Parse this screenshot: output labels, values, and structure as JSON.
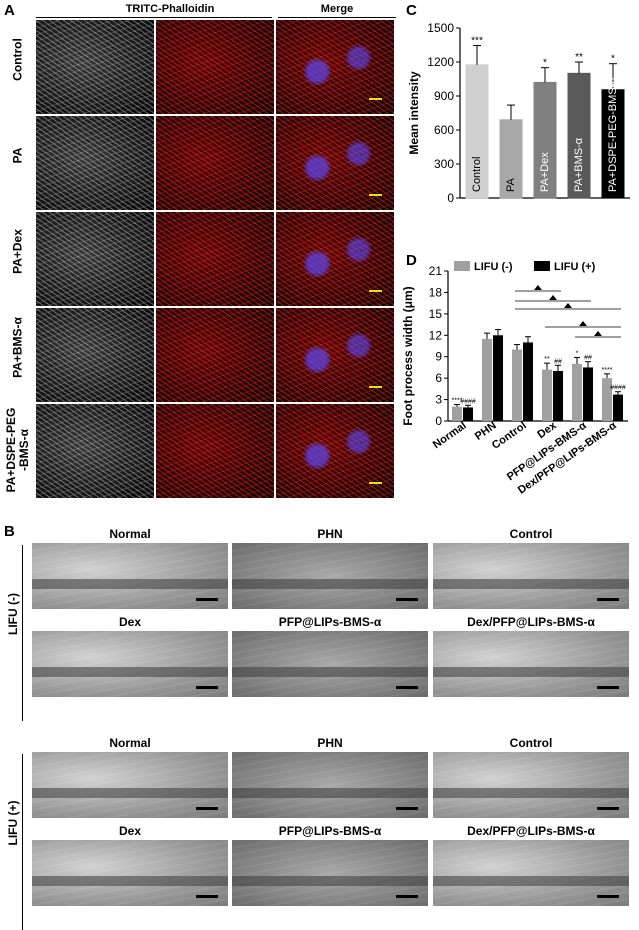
{
  "panel_a": {
    "letter": "A",
    "col_headers": [
      "TRITC-Phalloidin",
      "Merge"
    ],
    "rows": [
      "Control",
      "PA",
      "PA+Dex",
      "PA+BMS-α",
      "PA+DSPE-PEG\n-BMS-α"
    ]
  },
  "panel_c": {
    "letter": "C",
    "chart_data": {
      "type": "bar",
      "ylabel": "Mean intensity",
      "ylim": [
        0,
        1500
      ],
      "yticks": [
        0,
        300,
        600,
        900,
        1200,
        1500
      ],
      "categories": [
        "Control",
        "PA",
        "PA+Dex",
        "PA+BMS-α",
        "PA+DSPE-PEG-BMS-α"
      ],
      "values": [
        1175,
        690,
        1020,
        1100,
        955
      ],
      "errors": [
        170,
        130,
        130,
        100,
        230
      ],
      "significance": [
        "***",
        "",
        "*",
        "**",
        "*"
      ],
      "colors": [
        "#d0d0d0",
        "#a8a8a8",
        "#808080",
        "#5a5a5a",
        "#000000"
      ]
    }
  },
  "panel_d": {
    "letter": "D",
    "chart_data": {
      "type": "bar",
      "ylabel": "Foot process width (μm)",
      "ylim": [
        0,
        21
      ],
      "yticks": [
        0,
        3,
        6,
        9,
        12,
        15,
        18,
        21
      ],
      "categories": [
        "Normal",
        "PHN",
        "Control",
        "Dex",
        "PFP@LIPs-BMS-α",
        "Dex/PFP@LIPs-BMS-α"
      ],
      "series": [
        {
          "name": "LIFU (-)",
          "values": [
            2.0,
            11.5,
            10.0,
            7.2,
            8.0,
            6.0
          ],
          "errors": [
            0.3,
            0.8,
            0.7,
            0.9,
            0.9,
            0.6
          ],
          "color": "#a0a0a0"
        },
        {
          "name": "LIFU (+)",
          "values": [
            1.9,
            12.0,
            11.0,
            7.0,
            7.5,
            3.7
          ],
          "errors": [
            0.3,
            0.8,
            0.8,
            0.8,
            0.8,
            0.4
          ],
          "color": "#000000"
        }
      ],
      "marks_minus": [
        "****",
        "",
        "",
        "**",
        "*",
        "****"
      ],
      "marks_plus": [
        "####",
        "",
        "",
        "##",
        "##",
        "####"
      ],
      "legend_position": "top-left"
    }
  },
  "panel_b": {
    "letter": "B",
    "group_labels": [
      "LIFU (-)",
      "LIFU (+)"
    ],
    "titles": [
      "Normal",
      "PHN",
      "Control",
      "Dex",
      "PFP@LIPs-BMS-α",
      "Dex/PFP@LIPs-BMS-α"
    ]
  }
}
